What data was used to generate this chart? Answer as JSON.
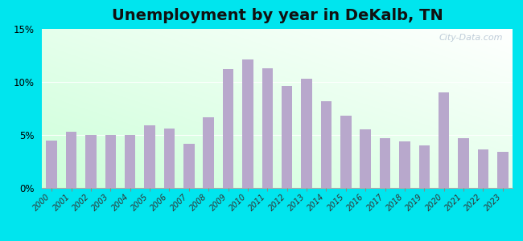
{
  "title": "Unemployment by year in DeKalb, TN",
  "years": [
    2000,
    2001,
    2002,
    2003,
    2004,
    2005,
    2006,
    2007,
    2008,
    2009,
    2010,
    2011,
    2012,
    2013,
    2014,
    2015,
    2016,
    2017,
    2018,
    2019,
    2020,
    2021,
    2022,
    2023
  ],
  "values": [
    4.5,
    5.3,
    5.0,
    5.0,
    5.0,
    5.9,
    5.6,
    4.2,
    6.7,
    11.2,
    12.1,
    11.3,
    9.6,
    10.3,
    8.2,
    6.8,
    5.5,
    4.7,
    4.4,
    4.0,
    9.0,
    4.7,
    3.6,
    3.4
  ],
  "bar_color": "#b8a8cc",
  "outer_bg": "#00e5ee",
  "ylim": [
    0,
    15
  ],
  "yticks": [
    0,
    5,
    10,
    15
  ],
  "title_fontsize": 14,
  "watermark_text": "City-Data.com",
  "bar_width": 0.55
}
